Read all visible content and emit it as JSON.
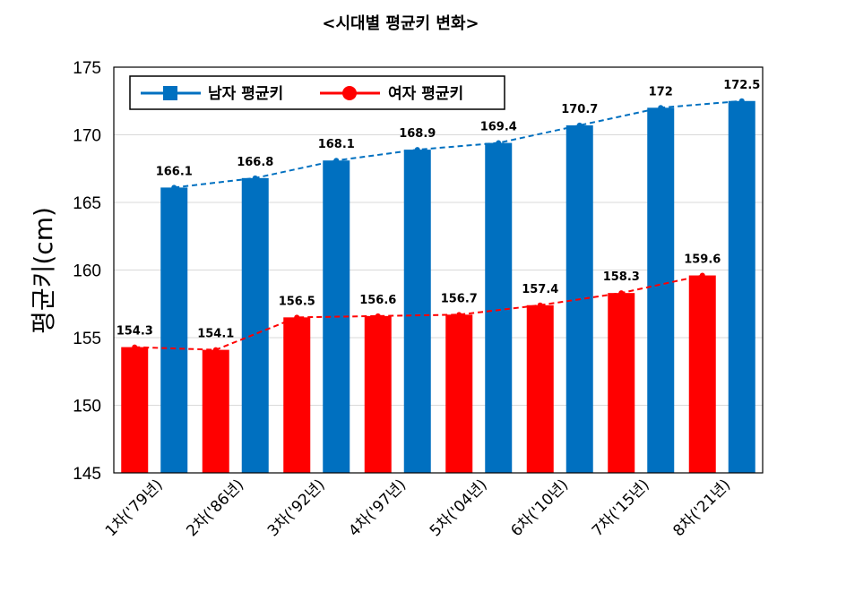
{
  "chart_data": {
    "type": "bar",
    "title": "<시대별 평균키 변화>",
    "xlabel": "",
    "ylabel": "평균키(cm)",
    "ylim": [
      145,
      175
    ],
    "yticks": [
      145,
      150,
      155,
      160,
      165,
      170,
      175
    ],
    "grid": true,
    "legend_position": "top-left",
    "categories": [
      "1차('79년)",
      "2차('86년)",
      "3차('92년)",
      "4차('97년)",
      "5차('04년)",
      "6차('10년)",
      "7차('15년)",
      "8차('21년)"
    ],
    "series": [
      {
        "name": "여자 평균키",
        "color": "#ff0000",
        "values": [
          154.3,
          154.1,
          156.5,
          156.6,
          156.7,
          157.4,
          158.3,
          159.6
        ]
      },
      {
        "name": "남자 평균키",
        "color": "#0070c0",
        "values": [
          166.1,
          166.8,
          168.1,
          168.9,
          169.4,
          170.7,
          172,
          172.5
        ]
      }
    ],
    "trend_lines": {
      "style": "dashed"
    }
  }
}
